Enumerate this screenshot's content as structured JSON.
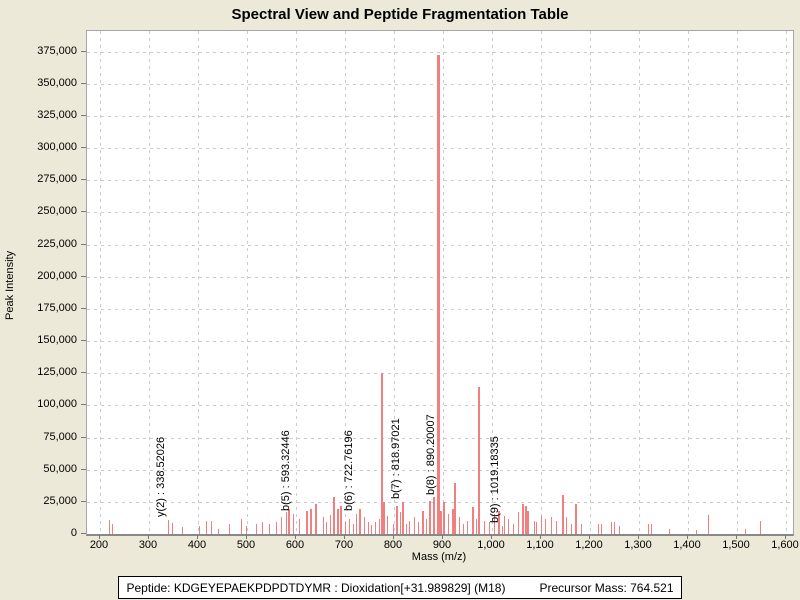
{
  "title": "Spectral View and Peptide Fragmentation Table",
  "footer": {
    "peptide_label": "Peptide: KDGEYEPAEKPDPDTDYMR : Dioxidation[+31.989829] (M18)",
    "precursor_label": "Precursor Mass: 764.521"
  },
  "chart_data": {
    "type": "bar",
    "title": "Spectral View and Peptide Fragmentation Table",
    "xlabel": "Mass (m/z)",
    "ylabel": "Peak Intensity",
    "xlim": [
      173,
      1614
    ],
    "ylim": [
      0,
      391000
    ],
    "grid": true,
    "peak_color": "#f08080",
    "x_ticks": [
      {
        "value": 200,
        "label": "200"
      },
      {
        "value": 300,
        "label": "300"
      },
      {
        "value": 400,
        "label": "400"
      },
      {
        "value": 500,
        "label": "500"
      },
      {
        "value": 600,
        "label": "600"
      },
      {
        "value": 700,
        "label": "700"
      },
      {
        "value": 800,
        "label": "800"
      },
      {
        "value": 900,
        "label": "900"
      },
      {
        "value": 1000,
        "label": "1,000"
      },
      {
        "value": 1100,
        "label": "1,100"
      },
      {
        "value": 1200,
        "label": "1,200"
      },
      {
        "value": 1300,
        "label": "1,300"
      },
      {
        "value": 1400,
        "label": "1,400"
      },
      {
        "value": 1500,
        "label": "1,500"
      },
      {
        "value": 1600,
        "label": "1,600"
      }
    ],
    "y_ticks": [
      {
        "value": 0,
        "label": "0"
      },
      {
        "value": 25000,
        "label": "25,000"
      },
      {
        "value": 50000,
        "label": "50,000"
      },
      {
        "value": 75000,
        "label": "75,000"
      },
      {
        "value": 100000,
        "label": "100,000"
      },
      {
        "value": 125000,
        "label": "125,000"
      },
      {
        "value": 150000,
        "label": "150,000"
      },
      {
        "value": 175000,
        "label": "175,000"
      },
      {
        "value": 200000,
        "label": "200,000"
      },
      {
        "value": 225000,
        "label": "225,000"
      },
      {
        "value": 250000,
        "label": "250,000"
      },
      {
        "value": 275000,
        "label": "275,000"
      },
      {
        "value": 300000,
        "label": "300,000"
      },
      {
        "value": 325000,
        "label": "325,000"
      },
      {
        "value": 350000,
        "label": "350,000"
      },
      {
        "value": 375000,
        "label": "375,000"
      }
    ],
    "annotations": [
      {
        "label": "y(2) : 338.52026",
        "mz": 338.52026,
        "intensity": 10500
      },
      {
        "label": "b(5) : 593.32446",
        "mz": 593.32446,
        "intensity": 15500
      },
      {
        "label": "b(6) : 722.76196",
        "mz": 722.76196,
        "intensity": 15600
      },
      {
        "label": "b(7) : 818.97021",
        "mz": 818.97021,
        "intensity": 24700
      },
      {
        "label": "b(8) : 890.20007",
        "mz": 890.20007,
        "intensity": 372000
      },
      {
        "label": "b(9) : 1019.18335",
        "mz": 1019.18335,
        "intensity": 6500
      }
    ],
    "peaks": [
      [
        217,
        11000
      ],
      [
        225,
        8000
      ],
      [
        338.52026,
        10500
      ],
      [
        347,
        8600
      ],
      [
        367,
        5700
      ],
      [
        402,
        6500
      ],
      [
        416,
        10400
      ],
      [
        426,
        10400
      ],
      [
        440,
        4000
      ],
      [
        463,
        7800
      ],
      [
        487,
        11700
      ],
      [
        497,
        6500
      ],
      [
        518,
        7800
      ],
      [
        531,
        9000
      ],
      [
        545,
        7800
      ],
      [
        559,
        9000
      ],
      [
        569,
        13000
      ],
      [
        579,
        17000
      ],
      [
        586,
        19400
      ],
      [
        593.32446,
        15500
      ],
      [
        606,
        11700
      ],
      [
        623,
        18000
      ],
      [
        630,
        19400
      ],
      [
        640,
        23300
      ],
      [
        654,
        13000
      ],
      [
        660,
        9000
      ],
      [
        668,
        15000
      ],
      [
        677,
        28600
      ],
      [
        685,
        19500
      ],
      [
        692,
        22000
      ],
      [
        700,
        9000
      ],
      [
        708,
        11700
      ],
      [
        715,
        8000
      ],
      [
        722.76196,
        15600
      ],
      [
        731,
        19500
      ],
      [
        739,
        13000
      ],
      [
        746,
        9000
      ],
      [
        752,
        7000
      ],
      [
        760,
        9000
      ],
      [
        768,
        12000
      ],
      [
        775,
        125000
      ],
      [
        780,
        24700
      ],
      [
        786,
        14000
      ],
      [
        797,
        8000
      ],
      [
        806,
        22000
      ],
      [
        811,
        17000
      ],
      [
        818.97021,
        24700
      ],
      [
        825,
        8000
      ],
      [
        831,
        10000
      ],
      [
        841,
        13000
      ],
      [
        849,
        9000
      ],
      [
        858,
        18000
      ],
      [
        865,
        12000
      ],
      [
        874,
        26000
      ],
      [
        882,
        28600
      ],
      [
        890.20007,
        372000
      ],
      [
        896,
        18000
      ],
      [
        902,
        24700
      ],
      [
        909,
        15600
      ],
      [
        920,
        19500
      ],
      [
        924,
        40000
      ],
      [
        933,
        13000
      ],
      [
        941,
        8000
      ],
      [
        948,
        10000
      ],
      [
        960,
        21000
      ],
      [
        967,
        12000
      ],
      [
        973,
        114000
      ],
      [
        984,
        10000
      ],
      [
        994,
        9000
      ],
      [
        1004,
        15600
      ],
      [
        1013,
        18000
      ],
      [
        1019.18335,
        6500
      ],
      [
        1025,
        14000
      ],
      [
        1032,
        11700
      ],
      [
        1042,
        7800
      ],
      [
        1052,
        17000
      ],
      [
        1062,
        23000
      ],
      [
        1069,
        22000
      ],
      [
        1074,
        18000
      ],
      [
        1085,
        10000
      ],
      [
        1090,
        9000
      ],
      [
        1100,
        14000
      ],
      [
        1107,
        11700
      ],
      [
        1120,
        13000
      ],
      [
        1130,
        10000
      ],
      [
        1145,
        30000
      ],
      [
        1151,
        13000
      ],
      [
        1160,
        8000
      ],
      [
        1171,
        23000
      ],
      [
        1181,
        7800
      ],
      [
        1216,
        7800
      ],
      [
        1222,
        7800
      ],
      [
        1242,
        9000
      ],
      [
        1249,
        9000
      ],
      [
        1259,
        6500
      ],
      [
        1318,
        7800
      ],
      [
        1324,
        7800
      ],
      [
        1361,
        4000
      ],
      [
        1416,
        3400
      ],
      [
        1440,
        14800
      ],
      [
        1516,
        4000
      ],
      [
        1547,
        10000
      ]
    ]
  }
}
